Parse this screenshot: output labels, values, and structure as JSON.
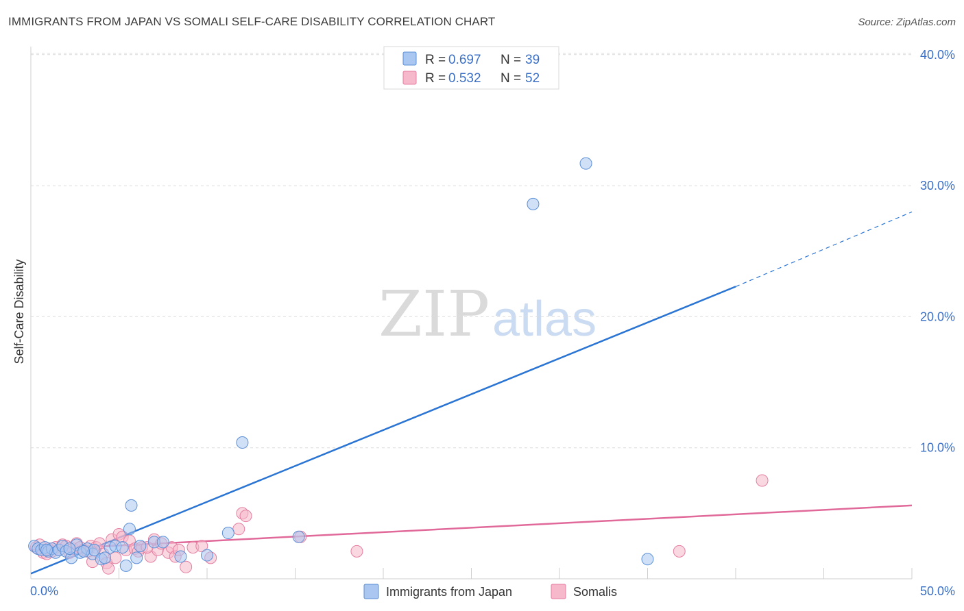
{
  "header": {
    "title": "IMMIGRANTS FROM JAPAN VS SOMALI SELF-CARE DISABILITY CORRELATION CHART",
    "source": "Source: ZipAtlas.com"
  },
  "watermark": {
    "zip": "ZIP",
    "atlas": "atlas"
  },
  "legend_top": {
    "r_label": "R =",
    "n_label": "N =",
    "rows": [
      {
        "r": "0.697",
        "n": "39"
      },
      {
        "r": "0.532",
        "n": "52"
      }
    ]
  },
  "colors": {
    "series_a_fill": "#a9c7f1",
    "series_a_stroke": "#5b8fd6",
    "series_a_line": "#2a74d3",
    "series_b_fill": "#f6b8cb",
    "series_b_stroke": "#e47ea0",
    "series_b_line": "#e0699a",
    "grid": "#dcdcdc",
    "tick_text": "#3b6fc4"
  },
  "chart_data": {
    "type": "scatter",
    "title": "IMMIGRANTS FROM JAPAN VS SOMALI SELF-CARE DISABILITY CORRELATION CHART",
    "xlabel": "",
    "ylabel": "Self-Care Disability",
    "xlim": [
      0,
      50
    ],
    "ylim": [
      0,
      42
    ],
    "x_ticks": [
      "0.0%",
      "50.0%"
    ],
    "y_ticks": [
      {
        "value": 10,
        "label": "10.0%"
      },
      {
        "value": 20,
        "label": "20.0%"
      },
      {
        "value": 30,
        "label": "30.0%"
      },
      {
        "value": 40,
        "label": "40.0%"
      }
    ],
    "legend": [
      "Immigrants from Japan",
      "Somalis"
    ],
    "series": [
      {
        "name": "Immigrants from Japan",
        "r": 0.697,
        "n": 39,
        "trend": {
          "x0": 0,
          "y0": 0.4,
          "x1": 40,
          "y1": 22.3,
          "dashed_to_x": 50,
          "dashed_to_y": 28.0
        },
        "points": [
          [
            0.2,
            2.5
          ],
          [
            0.4,
            2.3
          ],
          [
            0.6,
            2.2
          ],
          [
            0.8,
            2.4
          ],
          [
            1.0,
            2.1
          ],
          [
            1.2,
            2.3
          ],
          [
            1.4,
            2.0
          ],
          [
            1.6,
            2.2
          ],
          [
            1.8,
            2.5
          ],
          [
            2.0,
            2.1
          ],
          [
            2.3,
            1.6
          ],
          [
            2.6,
            2.6
          ],
          [
            2.8,
            2.0
          ],
          [
            3.2,
            2.3
          ],
          [
            3.5,
            1.9
          ],
          [
            3.6,
            2.2
          ],
          [
            4.0,
            1.5
          ],
          [
            4.2,
            1.6
          ],
          [
            4.5,
            2.4
          ],
          [
            4.8,
            2.5
          ],
          [
            5.2,
            2.4
          ],
          [
            5.4,
            1.0
          ],
          [
            5.6,
            3.8
          ],
          [
            5.7,
            5.6
          ],
          [
            6.0,
            1.6
          ],
          [
            6.2,
            2.5
          ],
          [
            7.0,
            2.8
          ],
          [
            7.5,
            2.8
          ],
          [
            8.5,
            1.7
          ],
          [
            10.0,
            1.8
          ],
          [
            11.2,
            3.5
          ],
          [
            12.0,
            10.4
          ],
          [
            15.2,
            3.2
          ],
          [
            28.5,
            28.6
          ],
          [
            31.5,
            31.7
          ],
          [
            35.0,
            1.5
          ],
          [
            0.9,
            2.2
          ],
          [
            3.0,
            2.1
          ],
          [
            2.2,
            2.3
          ]
        ]
      },
      {
        "name": "Somalis",
        "r": 0.532,
        "n": 52,
        "trend": {
          "x0": 0,
          "y0": 2.2,
          "x1": 50,
          "y1": 5.6
        },
        "points": [
          [
            0.3,
            2.4
          ],
          [
            0.5,
            2.6
          ],
          [
            0.7,
            2.0
          ],
          [
            1.0,
            2.3
          ],
          [
            1.2,
            2.1
          ],
          [
            1.4,
            2.4
          ],
          [
            1.6,
            2.2
          ],
          [
            1.8,
            2.6
          ],
          [
            2.0,
            2.5
          ],
          [
            2.2,
            2.0
          ],
          [
            2.4,
            2.3
          ],
          [
            2.6,
            2.7
          ],
          [
            2.8,
            2.4
          ],
          [
            3.0,
            2.2
          ],
          [
            3.2,
            2.1
          ],
          [
            3.4,
            2.5
          ],
          [
            3.5,
            1.3
          ],
          [
            3.7,
            2.4
          ],
          [
            3.9,
            2.7
          ],
          [
            4.1,
            1.9
          ],
          [
            4.3,
            1.2
          ],
          [
            4.4,
            0.8
          ],
          [
            4.6,
            3.0
          ],
          [
            4.8,
            1.6
          ],
          [
            5.0,
            3.4
          ],
          [
            5.2,
            3.2
          ],
          [
            5.4,
            2.2
          ],
          [
            5.6,
            2.9
          ],
          [
            5.9,
            2.3
          ],
          [
            6.1,
            2.1
          ],
          [
            6.3,
            2.4
          ],
          [
            6.8,
            1.7
          ],
          [
            7.0,
            3.0
          ],
          [
            7.2,
            2.2
          ],
          [
            7.4,
            2.7
          ],
          [
            7.8,
            2.0
          ],
          [
            8.0,
            2.4
          ],
          [
            8.2,
            1.7
          ],
          [
            8.4,
            2.2
          ],
          [
            8.8,
            0.9
          ],
          [
            9.2,
            2.4
          ],
          [
            9.7,
            2.5
          ],
          [
            12.0,
            5.0
          ],
          [
            12.2,
            4.8
          ],
          [
            11.8,
            3.8
          ],
          [
            15.3,
            3.2
          ],
          [
            18.5,
            2.1
          ],
          [
            36.8,
            2.1
          ],
          [
            41.5,
            7.5
          ],
          [
            0.9,
            1.9
          ],
          [
            6.6,
            2.4
          ],
          [
            10.2,
            1.6
          ]
        ]
      }
    ]
  }
}
